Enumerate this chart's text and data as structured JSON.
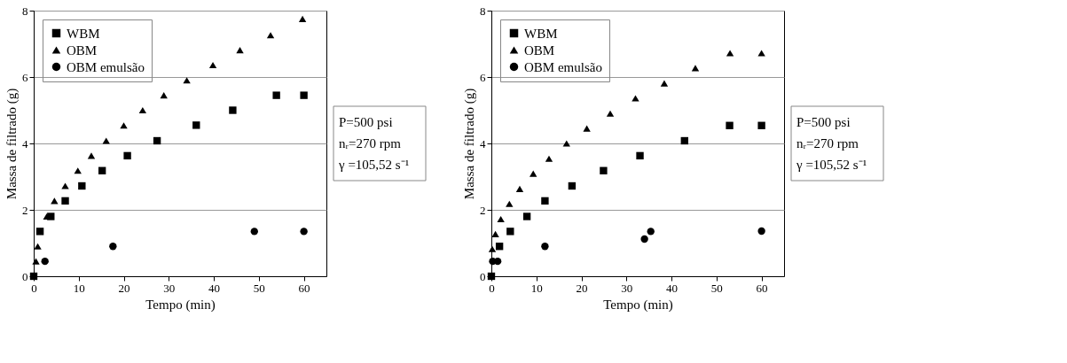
{
  "chart_data": [
    {
      "type": "scatter",
      "xlabel": "Tempo (min)",
      "ylabel": "Massa de filtrado (g)",
      "xlim": [
        0,
        65
      ],
      "ylim": [
        0,
        8
      ],
      "xticks": [
        0,
        10,
        20,
        30,
        40,
        50,
        60
      ],
      "yticks": [
        0,
        2,
        4,
        6,
        8
      ],
      "grid": "y",
      "legend": "top left",
      "annotations": [
        "P=500 psi",
        "nᵣ=270 rpm",
        "γ =105,52 s⁻¹"
      ],
      "series": [
        {
          "name": "WBM",
          "color": "#000000",
          "marker": "square",
          "x": [
            0,
            1.4,
            3.8,
            7,
            10.7,
            15.2,
            20.8,
            27.4,
            36.1,
            44.2,
            53.9,
            60
          ],
          "values": [
            0,
            1.35,
            1.8,
            2.27,
            2.72,
            3.18,
            3.63,
            4.08,
            4.55,
            5.0,
            5.45,
            5.45
          ]
        },
        {
          "name": "OBM",
          "color": "#000000",
          "marker": "triangle",
          "x": [
            0.5,
            0.9,
            2.9,
            4.6,
            7,
            9.8,
            12.8,
            16.1,
            20,
            24.2,
            28.9,
            34,
            39.8,
            45.8,
            52.6,
            59.7
          ],
          "values": [
            0.45,
            0.9,
            1.8,
            2.27,
            2.72,
            3.18,
            3.63,
            4.08,
            4.54,
            5.0,
            5.45,
            5.9,
            6.36,
            6.81,
            7.26,
            7.75
          ]
        },
        {
          "name": "OBM emulsão",
          "color": "#000000",
          "marker": "circle",
          "x": [
            2.5,
            17.6,
            49,
            60
          ],
          "values": [
            0.45,
            0.9,
            1.35,
            1.35
          ]
        }
      ]
    },
    {
      "type": "scatter",
      "xlabel": "Tempo (min)",
      "ylabel": "Massa de filtrado (g)",
      "xlim": [
        0,
        65
      ],
      "ylim": [
        0,
        8
      ],
      "xticks": [
        0,
        10,
        20,
        30,
        40,
        50,
        60
      ],
      "yticks": [
        0,
        2,
        4,
        6,
        8
      ],
      "grid": "y",
      "legend": "top left",
      "annotations": [
        "P=500 psi",
        "nᵣ=270 rpm",
        "γ =105,52 s⁻¹"
      ],
      "series": [
        {
          "name": "WBM",
          "color": "#000000",
          "marker": "square",
          "x": [
            0,
            1.8,
            4.2,
            7.9,
            11.9,
            17.9,
            24.9,
            33,
            42.9,
            52.9,
            60
          ],
          "values": [
            0,
            0.9,
            1.35,
            1.8,
            2.27,
            2.72,
            3.18,
            3.63,
            4.08,
            4.54,
            4.54
          ]
        },
        {
          "name": "OBM",
          "color": "#000000",
          "marker": "triangle",
          "x": [
            0.2,
            0.9,
            2.1,
            4,
            6.3,
            9.3,
            12.8,
            16.7,
            21.2,
            26.4,
            32,
            38.4,
            45.3,
            53,
            60
          ],
          "values": [
            0.82,
            1.27,
            1.72,
            2.18,
            2.63,
            3.09,
            3.54,
            4.0,
            4.45,
            4.9,
            5.36,
            5.81,
            6.27,
            6.72,
            6.72
          ]
        },
        {
          "name": "OBM emulsão",
          "color": "#000000",
          "marker": "circle",
          "x": [
            0.3,
            1.4,
            11.9,
            34,
            35.4,
            60
          ],
          "values": [
            0.45,
            0.45,
            0.9,
            1.12,
            1.35,
            1.36
          ]
        }
      ]
    }
  ]
}
